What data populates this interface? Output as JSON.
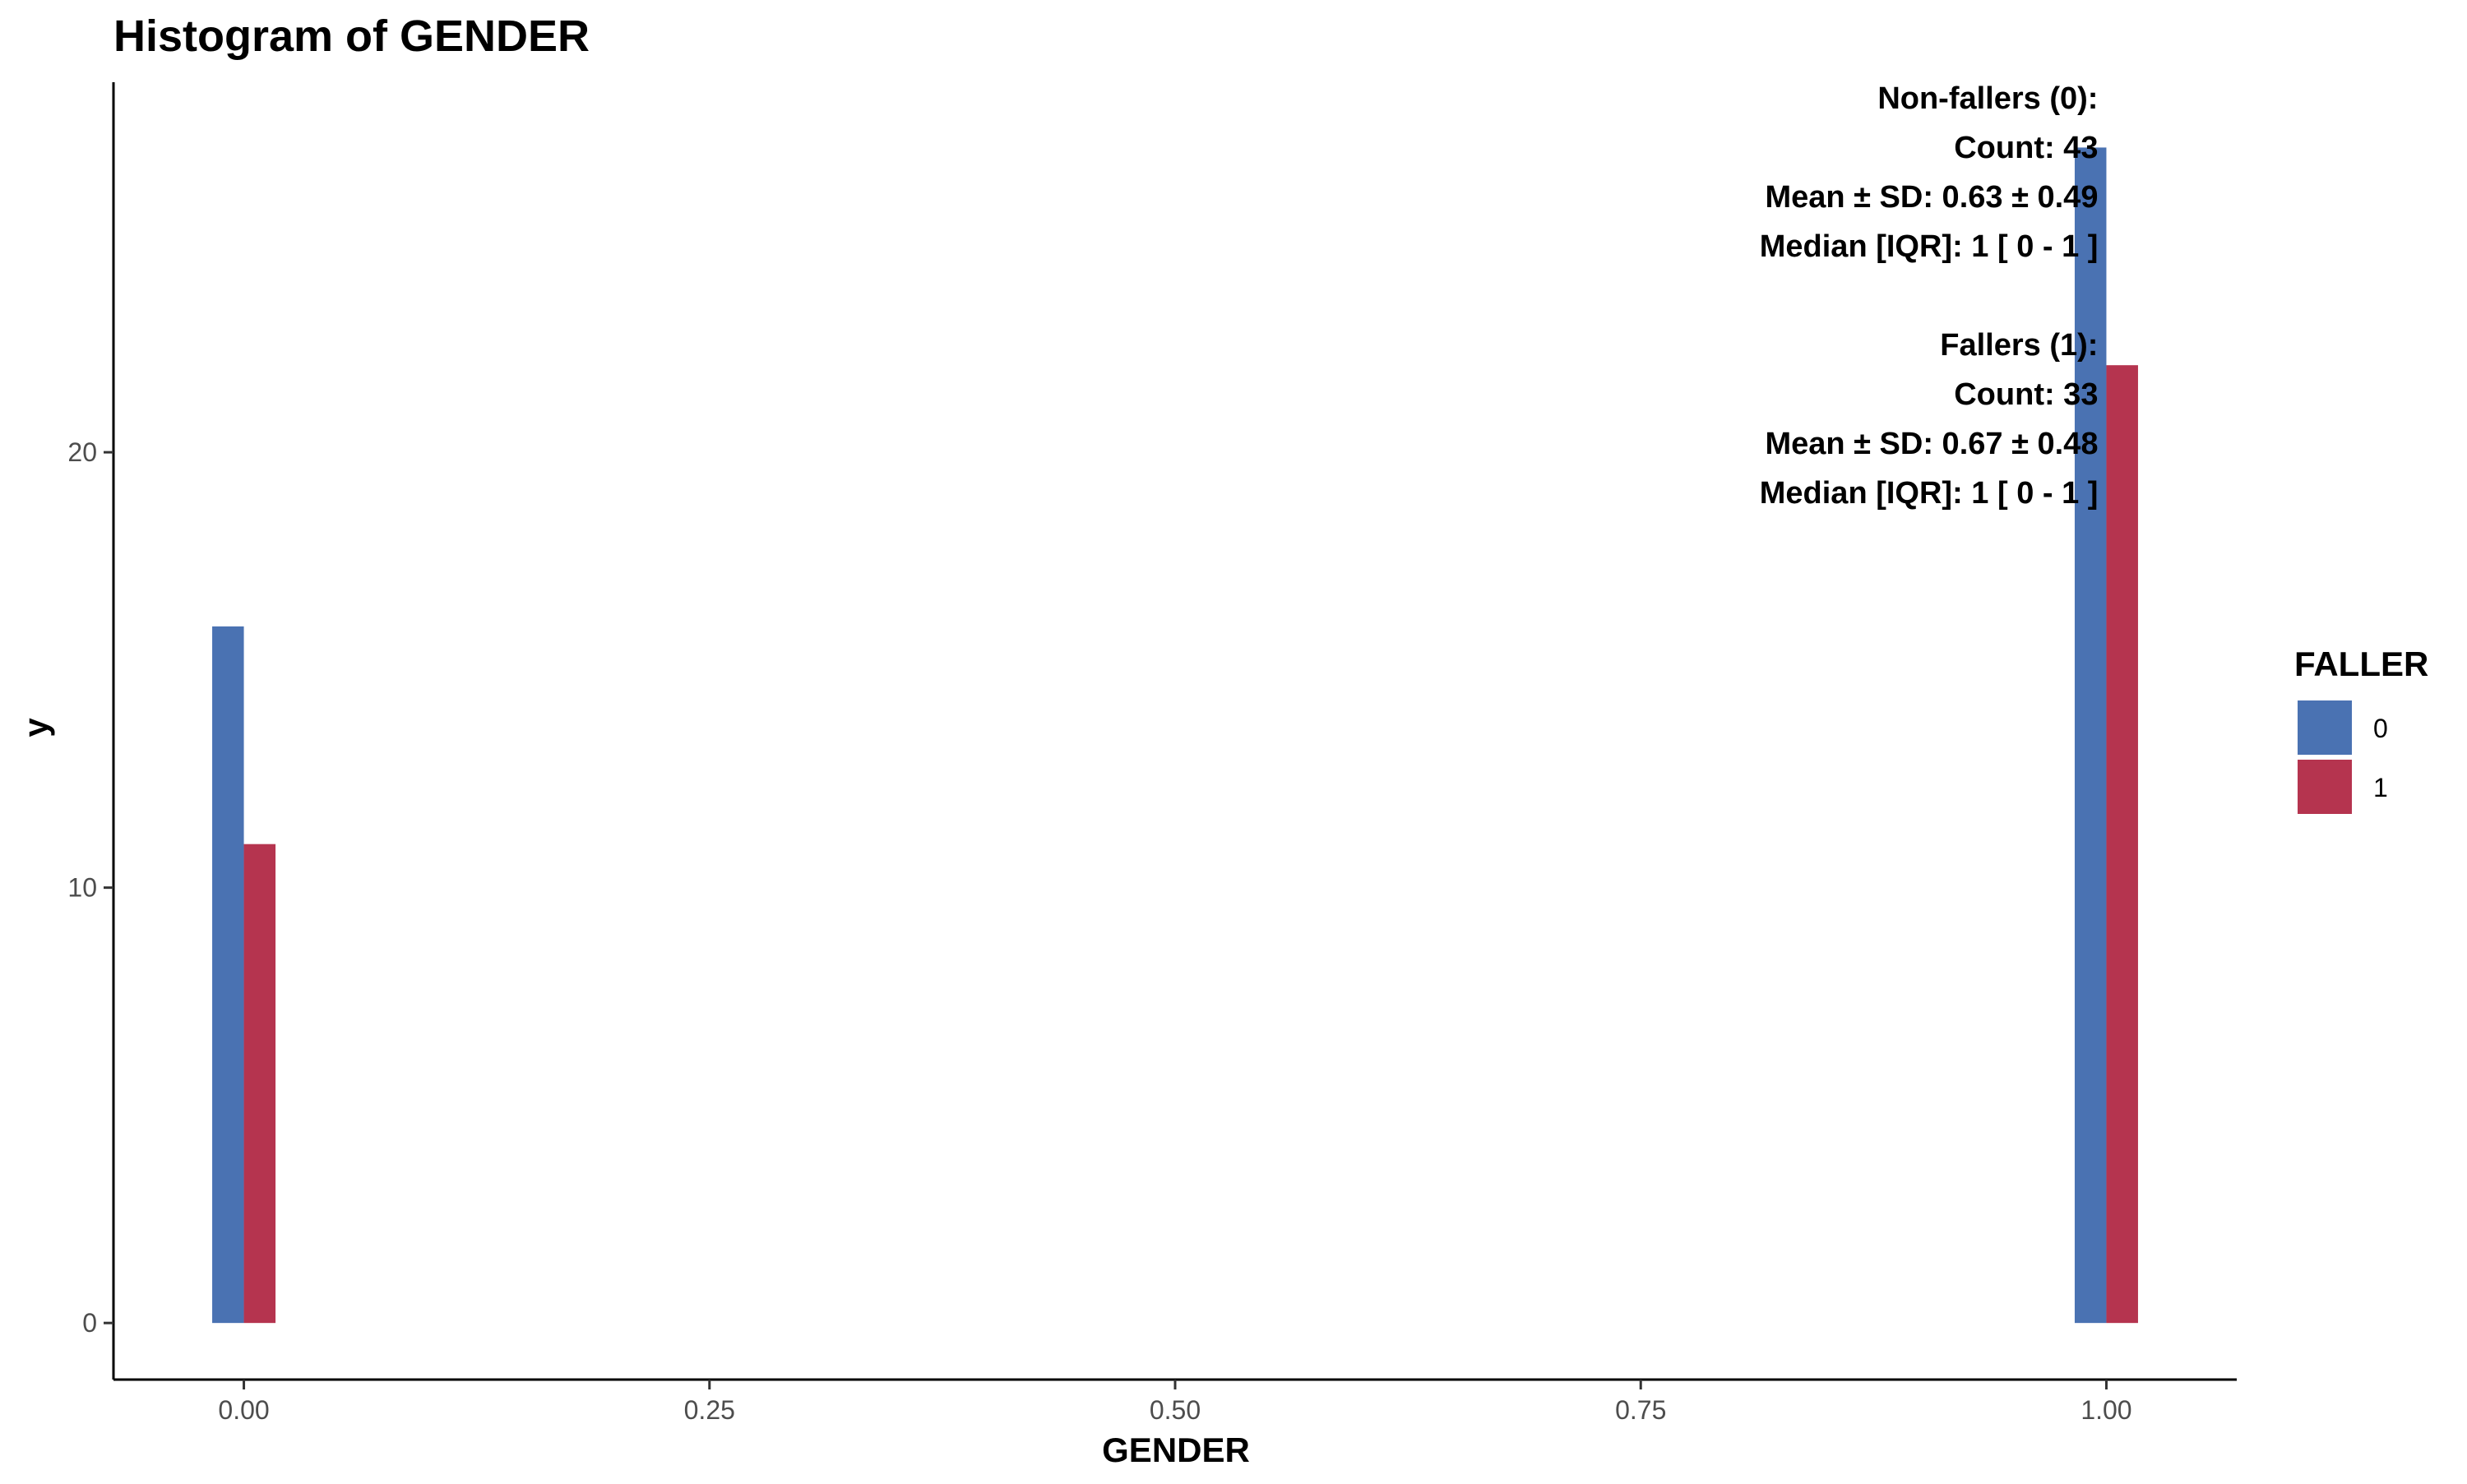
{
  "chart_data": {
    "type": "bar",
    "title": "Histogram of GENDER",
    "xlabel": "GENDER",
    "ylabel": "y",
    "xlim": [
      -0.07,
      1.07
    ],
    "ylim": [
      -1.3,
      28.5
    ],
    "x_ticks": [
      {
        "value": 0,
        "label": "0.00"
      },
      {
        "value": 0.25,
        "label": "0.25"
      },
      {
        "value": 0.5,
        "label": "0.50"
      },
      {
        "value": 0.75,
        "label": "0.75"
      },
      {
        "value": 1,
        "label": "1.00"
      }
    ],
    "y_ticks": [
      {
        "value": 0,
        "label": "0"
      },
      {
        "value": 10,
        "label": "10"
      },
      {
        "value": 20,
        "label": "20"
      }
    ],
    "bar_width": 0.017,
    "grid": false,
    "legend": {
      "title": "FALLER",
      "position": "right",
      "entries": [
        {
          "label": "0",
          "color": "#4a72b2"
        },
        {
          "label": "1",
          "color": "#b5344f"
        }
      ]
    },
    "series": [
      {
        "name": "0",
        "color": "#4a72b2",
        "offset": -0.0085,
        "x": [
          0,
          1
        ],
        "values": [
          16,
          27
        ]
      },
      {
        "name": "1",
        "color": "#b5344f",
        "offset": 0.0085,
        "x": [
          0,
          1
        ],
        "values": [
          11,
          22
        ]
      }
    ],
    "annotations": [
      "Non-fallers (0):",
      "Count: 43",
      "Mean ± SD: 0.63 ± 0.49",
      "Median [IQR]: 1 [ 0 - 1 ]",
      "",
      "Fallers (1):",
      "Count: 33",
      "Mean ± SD: 0.67 ± 0.48",
      "Median [IQR]: 1 [ 0 - 1 ]"
    ]
  }
}
